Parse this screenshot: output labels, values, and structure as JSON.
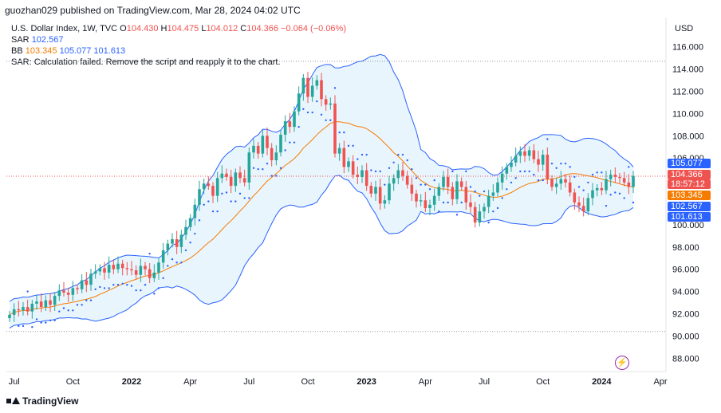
{
  "header": {
    "publisher": "guozhan029 published on TradingView.com, Mar 28, 2024 04:02 UTC"
  },
  "legend": {
    "symbol": "U.S. Dollar Index, 1W, TVC",
    "ohlc": {
      "o_label": "O",
      "o": "104.430",
      "h_label": "H",
      "h": "104.475",
      "l_label": "L",
      "l": "104.012",
      "c_label": "C",
      "c": "104.366",
      "change": "−0.064 (−0.06%)"
    },
    "sar": {
      "name": "SAR",
      "value": "102.567"
    },
    "bb": {
      "name": "BB",
      "middle": "103.345",
      "upper": "105.077",
      "lower": "101.613"
    },
    "error": "SAR: Calculation failed. Remove the script and reapply it to the chart."
  },
  "axis": {
    "currency": "USD",
    "y_ticks": [
      "116.000",
      "114.000",
      "112.000",
      "110.000",
      "108.000",
      "106.000",
      "100.000",
      "98.000",
      "96.000",
      "94.000",
      "92.000",
      "90.000",
      "88.000"
    ],
    "x_ticks": [
      "Jul",
      "Oct",
      "2022",
      "Apr",
      "Jul",
      "Oct",
      "2023",
      "Apr",
      "Jul",
      "Oct",
      "2024",
      "Apr"
    ]
  },
  "price_tags": {
    "bb_upper": "105.077",
    "last": "104.366",
    "countdown": "18:57:12",
    "bb_middle": "103.345",
    "sar": "102.567",
    "bb_lower": "101.613"
  },
  "colors": {
    "up": "#26a69a",
    "down": "#ef5350",
    "bb_band": "#2962ff",
    "bb_fill": "#e3f2fd",
    "bb_mid": "#f57c00",
    "sar": "#2962ff",
    "tag_blue": "#2962ff",
    "tag_red": "#ef5350",
    "tag_orange": "#f57c00"
  },
  "footer": {
    "brand": "TradingView"
  },
  "icons": {
    "watch": "lightning-icon",
    "logo": "tradingview-logo-icon"
  },
  "chart_data": {
    "type": "candlestick",
    "title": "U.S. Dollar Index, 1W, TVC",
    "ylabel": "USD",
    "ylim": [
      86.8,
      117.2
    ],
    "y_tick_values": [
      88,
      90,
      92,
      94,
      96,
      98,
      100,
      106,
      108,
      110,
      112,
      114,
      116
    ],
    "x_tick_labels": [
      "Jul",
      "Oct",
      "2022",
      "Apr",
      "Jul",
      "Oct",
      "2023",
      "Apr",
      "Jul",
      "Oct",
      "2024",
      "Apr"
    ],
    "x_tick_weeks": [
      1,
      14,
      27,
      40,
      53,
      66,
      79,
      92,
      105,
      118,
      131,
      144
    ],
    "horizontal_lines": [
      114.7,
      90.4,
      104.366
    ],
    "weeks": 148,
    "close": [
      91.9,
      92.4,
      92.3,
      92.6,
      92.2,
      92.9,
      93.1,
      92.6,
      93.2,
      92.8,
      93.6,
      94.1,
      93.9,
      93.7,
      94.3,
      94.2,
      95.0,
      94.6,
      95.6,
      95.8,
      96.1,
      95.7,
      96.4,
      96.0,
      96.5,
      96.1,
      96.0,
      95.9,
      95.5,
      96.3,
      96.0,
      95.2,
      95.7,
      96.6,
      97.7,
      98.3,
      98.7,
      98.0,
      99.1,
      99.8,
      100.6,
      101.8,
      103.2,
      103.7,
      103.5,
      102.6,
      104.2,
      104.6,
      104.3,
      103.5,
      104.7,
      104.2,
      103.8,
      106.5,
      107.1,
      106.4,
      108.0,
      106.9,
      105.8,
      106.5,
      108.1,
      109.3,
      108.8,
      110.2,
      111.8,
      113.2,
      111.5,
      112.5,
      113.0,
      111.3,
      110.8,
      110.9,
      106.4,
      106.9,
      105.2,
      105.7,
      104.5,
      104.3,
      104.9,
      103.5,
      102.8,
      103.4,
      101.9,
      102.2,
      103.7,
      104.2,
      104.9,
      104.4,
      103.6,
      102.8,
      102.1,
      102.2,
      101.5,
      101.8,
      102.6,
      103.4,
      104.3,
      103.4,
      102.3,
      103.9,
      103.4,
      102.0,
      101.6,
      100.2,
      101.2,
      101.6,
      102.6,
      102.9,
      103.8,
      104.6,
      105.2,
      105.6,
      106.2,
      106.6,
      106.2,
      106.7,
      105.9,
      105.4,
      106.3,
      104.1,
      103.4,
      103.7,
      104.1,
      103.8,
      102.9,
      102.0,
      101.7,
      101.2,
      102.4,
      103.1,
      103.3,
      103.1,
      104.1,
      104.5,
      104.3,
      104.2,
      103.8,
      103.4,
      104.4
    ],
    "bb_middle_end": 103.345,
    "bb_upper_end": 105.077,
    "bb_lower_end": 101.613,
    "sar_end": 102.567,
    "last_close": 104.366
  }
}
